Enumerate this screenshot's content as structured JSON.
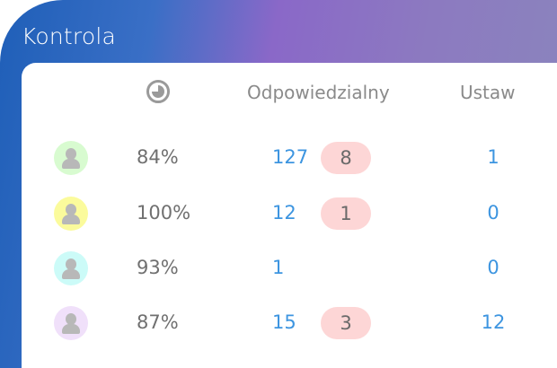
{
  "title": "Kontrola",
  "header": {
    "time_icon": "clock-icon",
    "responsible": "Odpowiedzialny",
    "set": "Ustaw"
  },
  "rows": [
    {
      "avatar_color": "#d8fbd0",
      "percent": "84%",
      "responsible": "127",
      "badge": "8",
      "set": "1"
    },
    {
      "avatar_color": "#fbfb9c",
      "percent": "100%",
      "responsible": "12",
      "badge": "1",
      "set": "0"
    },
    {
      "avatar_color": "#ccfbf8",
      "percent": "93%",
      "responsible": "1",
      "badge": null,
      "set": "0"
    },
    {
      "avatar_color": "#f0e0fa",
      "percent": "87%",
      "responsible": "15",
      "badge": "3",
      "set": "12"
    }
  ],
  "colors": {
    "accent": "#3d95e0",
    "badge_bg": "#fdd6d6"
  }
}
